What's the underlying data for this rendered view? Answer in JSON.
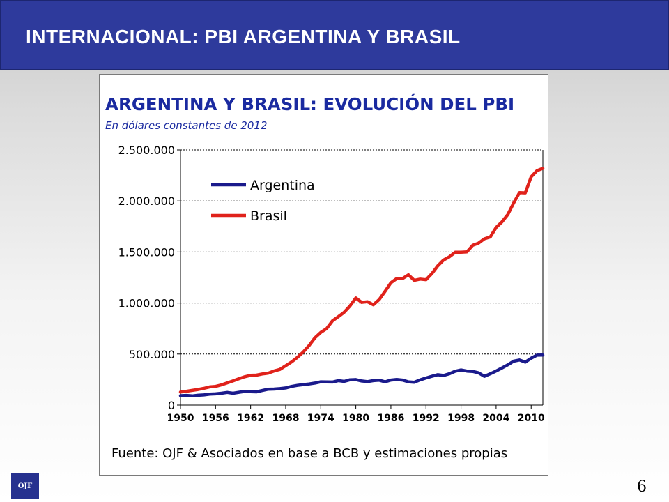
{
  "header": {
    "title": "INTERNACIONAL: PBI ARGENTINA Y BRASIL"
  },
  "chart_data": {
    "type": "line",
    "title": "ARGENTINA Y BRASIL: EVOLUCIÓN DEL PBI",
    "subtitle": "En dólares constantes de 2012",
    "source": "Fuente: OJF & Asociados en base a BCB y estimaciones propias",
    "xlabel": "",
    "ylabel": "",
    "xlim": [
      1950,
      2012
    ],
    "ylim": [
      0,
      2500000
    ],
    "y_ticks": [
      0,
      500000,
      1000000,
      1500000,
      2000000,
      2500000
    ],
    "y_tick_labels": [
      "0",
      "500.000",
      "1.000.000",
      "1.500.000",
      "2.000.000",
      "2.500.000"
    ],
    "x_ticks": [
      1950,
      1956,
      1962,
      1968,
      1974,
      1980,
      1986,
      1992,
      1998,
      2004,
      2010
    ],
    "x_tick_labels": [
      "1950",
      "1956",
      "1962",
      "1968",
      "1974",
      "1980",
      "1986",
      "1992",
      "1998",
      "2004",
      "2010"
    ],
    "grid": "horizontal dotted",
    "legend": "top-left",
    "x": [
      1950,
      1951,
      1952,
      1953,
      1954,
      1955,
      1956,
      1957,
      1958,
      1959,
      1960,
      1961,
      1962,
      1963,
      1964,
      1965,
      1966,
      1967,
      1968,
      1969,
      1970,
      1971,
      1972,
      1973,
      1974,
      1975,
      1976,
      1977,
      1978,
      1979,
      1980,
      1981,
      1982,
      1983,
      1984,
      1985,
      1986,
      1987,
      1988,
      1989,
      1990,
      1991,
      1992,
      1993,
      1994,
      1995,
      1996,
      1997,
      1998,
      1999,
      2000,
      2001,
      2002,
      2003,
      2004,
      2005,
      2006,
      2007,
      2008,
      2009,
      2010,
      2011,
      2012
    ],
    "series": [
      {
        "name": "Argentina",
        "color": "#1a1a8c",
        "values": [
          92000,
          95000,
          90000,
          96000,
          100000,
          107000,
          110000,
          116000,
          124000,
          116000,
          126000,
          134000,
          132000,
          130000,
          143000,
          156000,
          157000,
          161000,
          168000,
          183000,
          193000,
          201000,
          207000,
          216000,
          228000,
          227000,
          226000,
          240000,
          232000,
          248000,
          250000,
          236000,
          230000,
          240000,
          244000,
          228000,
          245000,
          251000,
          245000,
          228000,
          224000,
          247000,
          266000,
          282000,
          298000,
          290000,
          307000,
          332000,
          344000,
          333000,
          330000,
          316000,
          282000,
          307000,
          334000,
          364000,
          395000,
          430000,
          442000,
          421000,
          460000,
          489000,
          490000
        ]
      },
      {
        "name": "Brasil",
        "color": "#e0221b",
        "values": [
          128000,
          135000,
          144000,
          153000,
          164000,
          178000,
          183000,
          198000,
          218000,
          238000,
          259000,
          278000,
          292000,
          294000,
          305000,
          313000,
          334000,
          350000,
          386000,
          423000,
          467000,
          520000,
          583000,
          659000,
          712000,
          749000,
          826000,
          866000,
          909000,
          971000,
          1050000,
          1006000,
          1013000,
          983000,
          1034000,
          1114000,
          1198000,
          1240000,
          1240000,
          1276000,
          1222000,
          1234000,
          1228000,
          1287000,
          1363000,
          1421000,
          1452000,
          1497000,
          1497000,
          1501000,
          1566000,
          1587000,
          1629000,
          1647000,
          1740000,
          1795000,
          1867000,
          1980000,
          2082000,
          2079000,
          2236000,
          2297000,
          2320000
        ]
      }
    ]
  },
  "footer": {
    "logo_text": "OJF",
    "page_number": "6"
  }
}
